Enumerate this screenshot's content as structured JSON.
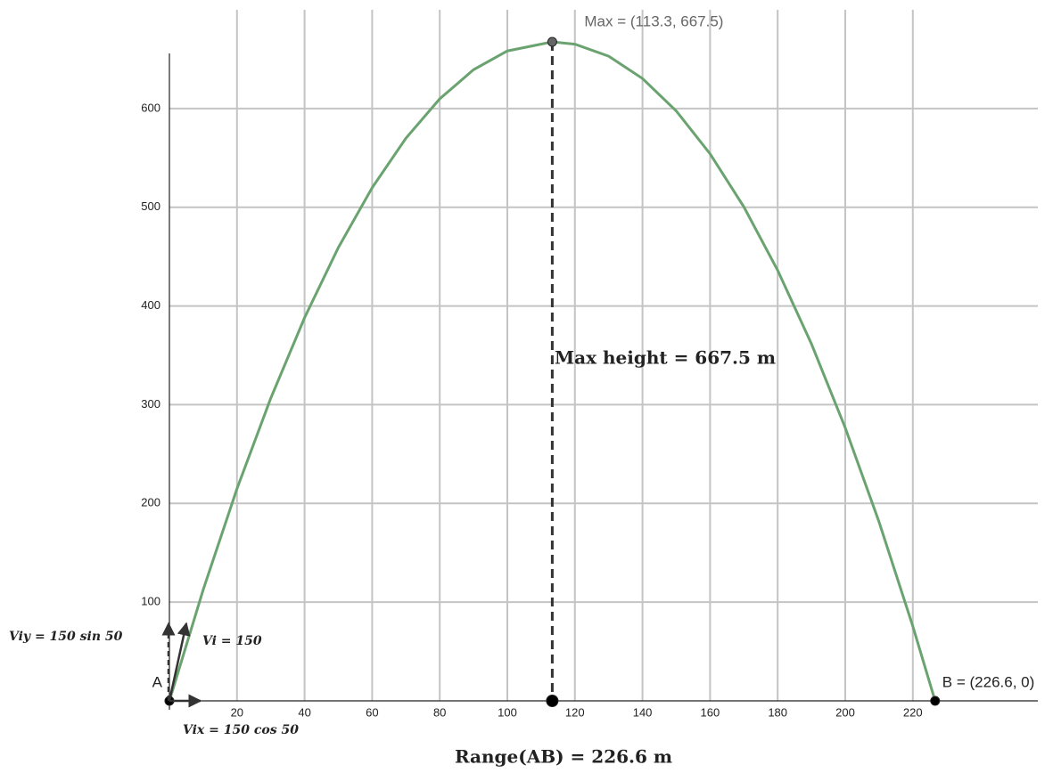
{
  "chart_data": {
    "type": "line",
    "x": [
      0,
      10,
      20,
      30,
      40,
      50,
      60,
      70,
      80,
      90,
      100,
      113.3,
      120,
      130,
      140,
      150,
      160,
      170,
      180,
      190,
      200,
      210,
      220,
      226.6
    ],
    "series": [
      {
        "color": "#6aa36f",
        "values": [
          0,
          112.6,
          214.9,
          306.6,
          388.1,
          459.2,
          519.8,
          570.0,
          609.8,
          639.3,
          658.3,
          667.5,
          665.2,
          653.0,
          630.4,
          597.5,
          554.1,
          500.4,
          436.1,
          361.6,
          276.6,
          181.3,
          75.6,
          0
        ]
      }
    ],
    "xlim": [
      0,
      257
    ],
    "ylim": [
      0,
      700
    ],
    "xticks": [
      20,
      40,
      60,
      80,
      100,
      120,
      140,
      160,
      180,
      200,
      220
    ],
    "yticks": [
      100,
      200,
      300,
      400,
      500,
      600
    ],
    "grid": true,
    "points": [
      {
        "label": "A",
        "x": 0,
        "y": 0
      },
      {
        "label": "B = (226.6, 0)",
        "x": 226.6,
        "y": 0
      },
      {
        "label": "Max = (113.3, 667.5)",
        "x": 113.3,
        "y": 667.5
      },
      {
        "x": 113.3,
        "y": 0
      }
    ],
    "annotations": {
      "max_height": "Max height = 667.5 m",
      "range": "Range(AB) = 226.6 m",
      "vi": "Vi = 150",
      "viy": "Viy = 150 sin 50",
      "vix": "Vix = 150 cos 50"
    }
  }
}
